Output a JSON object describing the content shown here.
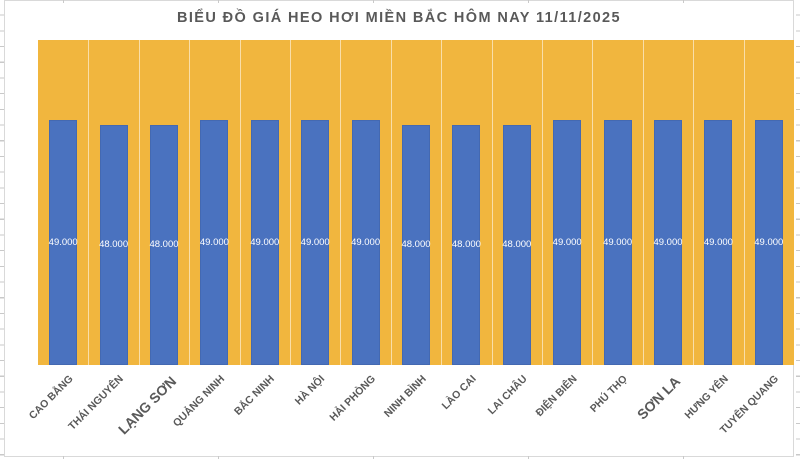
{
  "window": {
    "background_color": "#FFFFFF",
    "frame_border_color": "#D9D9D9"
  },
  "chart_data": {
    "type": "bar",
    "title": "BIỂU ĐỒ GIÁ HEO HƠI MIỀN BẮC HÔM NAY 11/11/2025",
    "categories": [
      "CAO BẰNG",
      "THÁI NGUYÊN",
      "LẠNG SƠN",
      "QUẢNG NINH",
      "BẮC NINH",
      "HÀ NỘI",
      "HẢI PHÒNG",
      "NINH BÌNH",
      "LÀO CAI",
      "LAI CHÂU",
      "ĐIỆN BIÊN",
      "PHÚ THỌ",
      "SƠN LA",
      "HƯNG YÊN",
      "TUYÊN QUANG"
    ],
    "values": [
      49000,
      48000,
      48000,
      49000,
      49000,
      49000,
      49000,
      48000,
      48000,
      48000,
      49000,
      49000,
      49000,
      49000,
      49000
    ],
    "value_labels": [
      "49.000",
      "48.000",
      "48.000",
      "49.000",
      "49.000",
      "49.000",
      "49.000",
      "48.000",
      "48.000",
      "48.000",
      "49.000",
      "49.000",
      "49.000",
      "49.000",
      "49.000"
    ],
    "xlabel": "",
    "ylabel": "",
    "ylim": [
      0,
      65000
    ],
    "y_axis_labels_visible": false,
    "grid": "vertical-category-lines",
    "legend_position": "none",
    "value_label_position": "center-of-bar",
    "category_label_rotation_deg": 45,
    "emphasized_categories": [
      "LẠNG SƠN",
      "SƠN LA"
    ],
    "colors": {
      "bar": "#4A72BF",
      "plot_background": "#F1B63E",
      "gridline": "rgba(255,255,255,0.55)",
      "value_label_text": "#FFFFFF",
      "category_label_text": "#595959",
      "title_text": "#595959"
    }
  }
}
